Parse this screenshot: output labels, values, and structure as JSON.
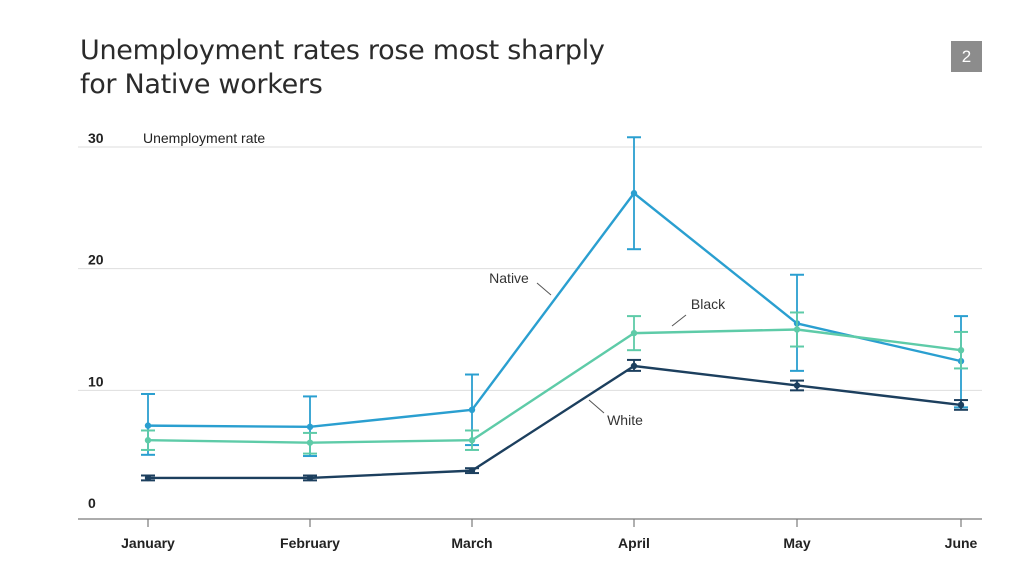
{
  "badge": "2",
  "chart_data": {
    "type": "line",
    "title_lines": [
      "Unemployment rates rose most sharply",
      "for Native workers"
    ],
    "ylabel": "Unemployment rate",
    "xlabel": "",
    "categories": [
      "January",
      "February",
      "March",
      "April",
      "May",
      "June"
    ],
    "y_ticks": [
      0,
      10,
      20,
      30
    ],
    "ylim": [
      0,
      30
    ],
    "grid": true,
    "error_bars": true,
    "series": [
      {
        "name": "Native",
        "color": "#2a9fd0",
        "values": [
          7.1,
          7.0,
          8.4,
          26.2,
          15.5,
          12.4
        ],
        "error_low": [
          4.7,
          4.6,
          5.5,
          21.6,
          11.6,
          8.6
        ],
        "error_high": [
          9.7,
          9.5,
          11.3,
          30.8,
          19.5,
          16.1
        ]
      },
      {
        "name": "Black",
        "color": "#5ecba8",
        "values": [
          5.9,
          5.7,
          5.9,
          14.7,
          15.0,
          13.3
        ],
        "error_low": [
          5.1,
          4.8,
          5.1,
          13.3,
          13.6,
          11.8
        ],
        "error_high": [
          6.7,
          6.5,
          6.7,
          16.1,
          16.4,
          14.8
        ]
      },
      {
        "name": "White",
        "color": "#1c3f5e",
        "values": [
          2.8,
          2.8,
          3.4,
          12.0,
          10.4,
          8.8
        ],
        "error_low": [
          2.6,
          2.6,
          3.2,
          11.6,
          10.0,
          8.4
        ],
        "error_high": [
          3.0,
          3.0,
          3.6,
          12.5,
          10.8,
          9.2
        ]
      }
    ]
  }
}
